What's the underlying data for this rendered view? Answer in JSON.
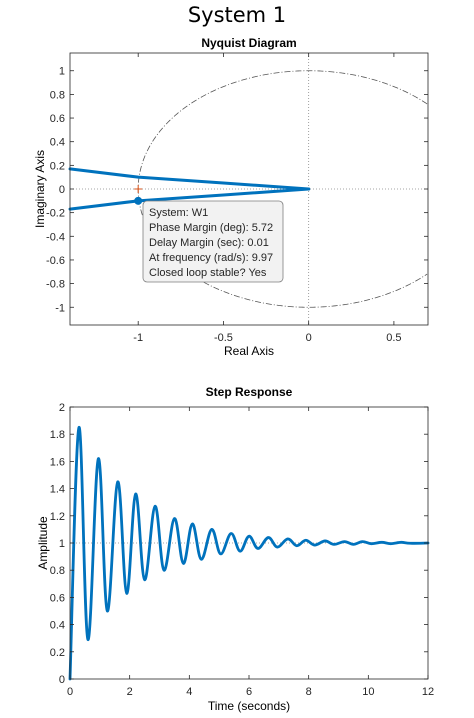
{
  "figure_title": "System 1",
  "chart_data": [
    {
      "type": "line",
      "title": "Nyquist Diagram",
      "xlabel": "Real Axis",
      "ylabel": "Imaginary Axis",
      "xlim": [
        -1.4,
        0.7
      ],
      "ylim": [
        -1.15,
        1.15
      ],
      "xticks": [
        -1,
        -0.5,
        0,
        0.5
      ],
      "xtick_labels": [
        "-1",
        "-0.5",
        "0",
        "0.5"
      ],
      "yticks": [
        1,
        0.8,
        0.6,
        0.4,
        0.2,
        0,
        -0.2,
        -0.4,
        -0.6,
        -0.8,
        -1
      ],
      "ytick_labels": [
        "1",
        "0.8",
        "0.6",
        "0.4",
        "0.2",
        "0",
        "-0.2",
        "-0.4",
        "-0.6",
        "-0.8",
        "-1"
      ],
      "grid": false,
      "reference_lines": {
        "x": 0,
        "y": 0,
        "style": "dotted"
      },
      "unit_circle": {
        "radius": 1,
        "style": "dash-dot"
      },
      "critical_point": [
        -1,
        0
      ],
      "colors": {
        "series": "#0072BD",
        "reference": "#888888",
        "critical": "#d95319"
      },
      "series": [
        {
          "x": [
            0,
            -0.5,
            -1,
            -1.4
          ],
          "y": [
            0,
            0.051,
            0.1,
            0.17
          ]
        },
        {
          "x": [
            0,
            -0.5,
            -1,
            -1.4
          ],
          "y": [
            0,
            -0.051,
            -0.1,
            -0.17
          ]
        }
      ],
      "marker": {
        "x": -1,
        "y": -0.1
      },
      "datatip": [
        "System: W1",
        "Phase Margin (deg): 5.72",
        "Delay Margin (sec): 0.01",
        "At frequency (rad/s): 9.97",
        "Closed loop stable? Yes"
      ]
    },
    {
      "type": "line",
      "title": "Step Response",
      "xlabel": "Time (seconds)",
      "ylabel": "Amplitude",
      "xlim": [
        0,
        12
      ],
      "ylim": [
        0,
        2
      ],
      "xticks": [
        0,
        2,
        4,
        6,
        8,
        10,
        12
      ],
      "xtick_labels": [
        "0",
        "2",
        "4",
        "6",
        "8",
        "10",
        "12"
      ],
      "yticks": [
        0,
        0.2,
        0.4,
        0.6,
        0.8,
        1,
        1.2,
        1.4,
        1.6,
        1.8,
        2
      ],
      "ytick_labels": [
        "0",
        "0.2",
        "0.4",
        "0.6",
        "0.8",
        "1",
        "1.2",
        "1.4",
        "1.6",
        "1.8",
        "2"
      ],
      "grid": false,
      "reference_lines": {
        "y": 1,
        "style": "dotted"
      },
      "colors": {
        "series": "#0072BD",
        "reference": "#888888"
      },
      "series": [
        {
          "x": [
            0,
            0.3,
            0.6,
            0.95,
            1.25,
            1.6,
            1.9,
            2.2,
            2.5,
            2.85,
            3.15,
            3.5,
            3.8,
            4.1,
            4.4,
            4.75,
            5.05,
            5.4,
            5.7,
            6.0,
            6.3,
            6.65,
            6.95,
            7.3,
            7.6,
            7.9,
            8.2,
            8.55,
            8.85,
            9.2,
            9.5,
            9.8,
            10.1,
            10.45,
            10.75,
            11.1,
            11.4,
            12
          ],
          "y": [
            0,
            1.85,
            0.29,
            1.62,
            0.5,
            1.45,
            0.63,
            1.36,
            0.73,
            1.27,
            0.8,
            1.18,
            0.85,
            1.14,
            0.88,
            1.1,
            0.92,
            1.07,
            0.94,
            1.05,
            0.96,
            1.04,
            0.97,
            1.03,
            0.98,
            1.02,
            0.985,
            1.015,
            0.99,
            1.01,
            0.99,
            1.01,
            0.995,
            1.005,
            0.995,
            1.005,
            0.998,
            1.0
          ]
        }
      ]
    }
  ]
}
